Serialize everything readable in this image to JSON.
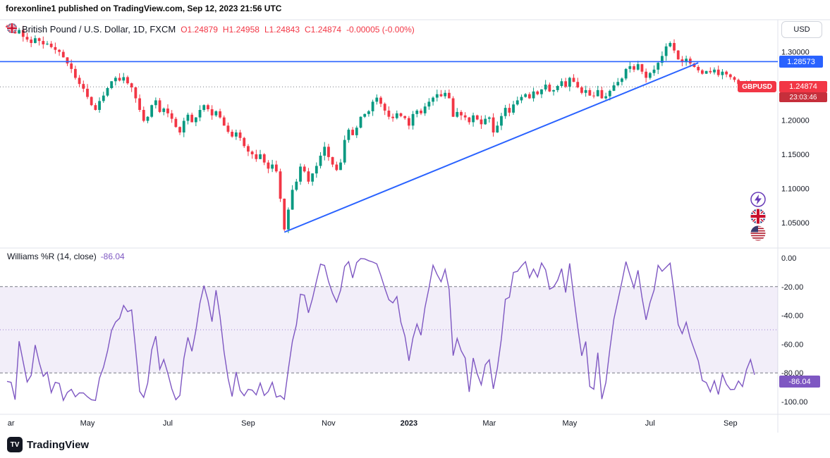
{
  "header": {
    "publish_line": "forexonline1 published on TradingView.com, Sep 12, 2023 21:56 UTC"
  },
  "main_chart": {
    "legend": {
      "title": "British Pound / U.S. Dollar, 1D, FXCM",
      "open": "O1.24879",
      "high": "H1.24958",
      "low": "L1.24843",
      "close": "C1.24874",
      "change": "-0.00005 (-0.00%)"
    },
    "price_scale": {
      "currency": "USD",
      "alert_price": "1.28573",
      "symbol_tag": "GBPUSD",
      "last_price": "1.24874",
      "countdown": "23:03:46"
    }
  },
  "indicator": {
    "title": "Williams %R (14, close)",
    "value": "-86.04"
  },
  "footer": {
    "brand": "TradingView"
  },
  "colors": {
    "up": "#089981",
    "down": "#f23645",
    "line_blue": "#2962ff",
    "williams": "#7e57c2",
    "axis_text": "#131722",
    "grid": "#e0e3eb",
    "band_fill": "rgba(126,87,194,0.10)",
    "band_line": "#787b86"
  },
  "chart_data": [
    {
      "type": "candlestick",
      "symbol": "GBPUSD",
      "timeframe": "1D",
      "exchange": "FXCM",
      "ohlc_last": {
        "open": 1.24879,
        "high": 1.24958,
        "low": 1.24843,
        "close": 1.24874
      },
      "ylim": [
        1.02,
        1.345
      ],
      "yticks": [
        1.3,
        1.25,
        1.2,
        1.15,
        1.1,
        1.05
      ],
      "last_close": 1.24874,
      "hline": 1.28573,
      "trendline": {
        "from": {
          "i": 69,
          "price": 1.036
        },
        "to": {
          "i": 172,
          "price": 1.284
        }
      },
      "time_ticks": [
        {
          "label": "ar",
          "i": 1
        },
        {
          "label": "May",
          "i": 20
        },
        {
          "label": "Jul",
          "i": 40
        },
        {
          "label": "Sep",
          "i": 60
        },
        {
          "label": "Nov",
          "i": 80
        },
        {
          "label": "2023",
          "i": 100,
          "bold": true
        },
        {
          "label": "Mar",
          "i": 120
        },
        {
          "label": "May",
          "i": 140
        },
        {
          "label": "Jul",
          "i": 160
        },
        {
          "label": "Sep",
          "i": 180
        }
      ],
      "closes": [
        1.336,
        1.33,
        1.327,
        1.332,
        1.322,
        1.318,
        1.313,
        1.32,
        1.316,
        1.311,
        1.312,
        1.307,
        1.303,
        1.3,
        1.292,
        1.283,
        1.275,
        1.262,
        1.253,
        1.246,
        1.234,
        1.222,
        1.215,
        1.228,
        1.236,
        1.247,
        1.257,
        1.262,
        1.258,
        1.263,
        1.254,
        1.248,
        1.232,
        1.215,
        1.199,
        1.205,
        1.222,
        1.229,
        1.212,
        1.217,
        1.21,
        1.202,
        1.19,
        1.182,
        1.199,
        1.208,
        1.197,
        1.204,
        1.215,
        1.222,
        1.216,
        1.207,
        1.213,
        1.204,
        1.192,
        1.183,
        1.176,
        1.182,
        1.174,
        1.162,
        1.154,
        1.15,
        1.143,
        1.15,
        1.138,
        1.129,
        1.135,
        1.125,
        1.085,
        1.04,
        1.069,
        1.098,
        1.11,
        1.132,
        1.125,
        1.11,
        1.122,
        1.133,
        1.148,
        1.161,
        1.146,
        1.135,
        1.127,
        1.138,
        1.171,
        1.186,
        1.178,
        1.189,
        1.205,
        1.209,
        1.213,
        1.227,
        1.233,
        1.224,
        1.214,
        1.205,
        1.203,
        1.21,
        1.206,
        1.203,
        1.192,
        1.209,
        1.214,
        1.21,
        1.22,
        1.227,
        1.233,
        1.238,
        1.235,
        1.24,
        1.232,
        1.205,
        1.212,
        1.207,
        1.204,
        1.197,
        1.207,
        1.201,
        1.194,
        1.202,
        1.204,
        1.182,
        1.192,
        1.206,
        1.218,
        1.211,
        1.223,
        1.229,
        1.234,
        1.238,
        1.232,
        1.242,
        1.238,
        1.245,
        1.252,
        1.242,
        1.244,
        1.25,
        1.257,
        1.249,
        1.262,
        1.256,
        1.248,
        1.24,
        1.244,
        1.236,
        1.235,
        1.244,
        1.232,
        1.235,
        1.243,
        1.251,
        1.256,
        1.261,
        1.275,
        1.279,
        1.274,
        1.282,
        1.271,
        1.262,
        1.269,
        1.274,
        1.284,
        1.294,
        1.308,
        1.313,
        1.302,
        1.289,
        1.285,
        1.29,
        1.283,
        1.278,
        1.273,
        1.268,
        1.272,
        1.27,
        1.274,
        1.266,
        1.271,
        1.267,
        1.263,
        1.259,
        1.253,
        1.247,
        1.251,
        1.253,
        1.24874
      ]
    },
    {
      "type": "line",
      "name": "Williams %R",
      "params": "(14, close)",
      "period": 14,
      "source": "close",
      "last_value": -86.04,
      "ylim": [
        -100,
        0
      ],
      "yticks": [
        0,
        -20,
        -40,
        -60,
        -80,
        -100
      ],
      "bands": {
        "upper": -20,
        "lower": -80
      },
      "midline": -50,
      "derived_from_price_series": true
    }
  ]
}
